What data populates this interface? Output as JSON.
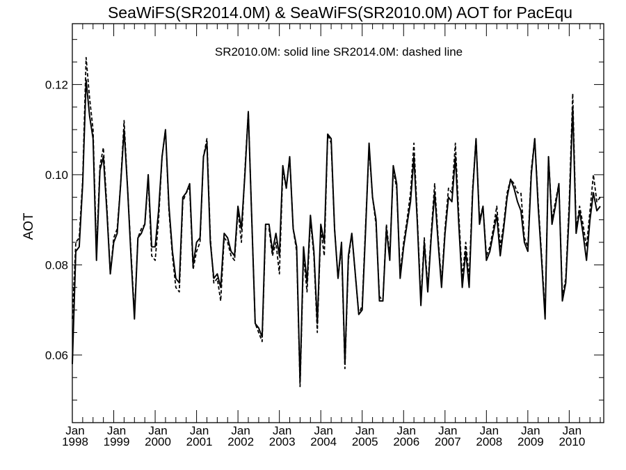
{
  "chart_data": {
    "type": "line",
    "title": "SeaWiFS(SR2014.0M) & SeaWiFS(SR2010.0M)  AOT for PacEqu",
    "annotation": "SR2010.0M: solid line   SR2014.0M: dashed line",
    "ylabel": "AOT",
    "xlabel": "",
    "xlim": [
      "1998-01",
      "2010-11"
    ],
    "ylim": [
      0.045,
      0.1335
    ],
    "grid": false,
    "legend": "none",
    "y_ticks": [
      {
        "value": 0.06,
        "label": "0.06"
      },
      {
        "value": 0.08,
        "label": "0.08"
      },
      {
        "value": 0.1,
        "label": "0.10"
      },
      {
        "value": 0.12,
        "label": "0.12"
      }
    ],
    "x_ticks": [
      {
        "month": "1998-01",
        "label1": "Jan",
        "label2": "1998"
      },
      {
        "month": "1999-01",
        "label1": "Jan",
        "label2": "1999"
      },
      {
        "month": "2000-01",
        "label1": "Jan",
        "label2": "2000"
      },
      {
        "month": "2001-01",
        "label1": "Jan",
        "label2": "2001"
      },
      {
        "month": "2002-01",
        "label1": "Jan",
        "label2": "2002"
      },
      {
        "month": "2003-01",
        "label1": "Jan",
        "label2": "2003"
      },
      {
        "month": "2004-01",
        "label1": "Jan",
        "label2": "2004"
      },
      {
        "month": "2005-01",
        "label1": "Jan",
        "label2": "2005"
      },
      {
        "month": "2006-01",
        "label1": "Jan",
        "label2": "2006"
      },
      {
        "month": "2007-01",
        "label1": "Jan",
        "label2": "2007"
      },
      {
        "month": "2008-01",
        "label1": "Jan",
        "label2": "2008"
      },
      {
        "month": "2009-01",
        "label1": "Jan",
        "label2": "2009"
      },
      {
        "month": "2010-01",
        "label1": "Jan",
        "label2": "2010"
      }
    ],
    "series": [
      {
        "style": "solid",
        "start": "1998-01",
        "values": [
          0.058,
          0.083,
          0.084,
          0.098,
          0.121,
          0.113,
          0.108,
          0.081,
          0.101,
          0.104,
          0.092,
          0.078,
          0.085,
          0.087,
          0.098,
          0.11,
          0.097,
          0.082,
          0.068,
          0.086,
          0.087,
          0.089,
          0.1,
          0.084,
          0.084,
          0.092,
          0.104,
          0.11,
          0.093,
          0.083,
          0.077,
          0.076,
          0.095,
          0.096,
          0.098,
          0.08,
          0.085,
          0.086,
          0.104,
          0.107,
          0.085,
          0.077,
          0.078,
          0.075,
          0.087,
          0.086,
          0.083,
          0.082,
          0.093,
          0.088,
          0.1,
          0.114,
          0.09,
          0.067,
          0.066,
          0.064,
          0.089,
          0.089,
          0.083,
          0.087,
          0.082,
          0.102,
          0.097,
          0.104,
          0.088,
          0.084,
          0.054,
          0.084,
          0.076,
          0.091,
          0.083,
          0.067,
          0.089,
          0.085,
          0.109,
          0.108,
          0.088,
          0.077,
          0.085,
          0.058,
          0.082,
          0.087,
          0.078,
          0.069,
          0.07,
          0.088,
          0.107,
          0.095,
          0.09,
          0.072,
          0.072,
          0.088,
          0.081,
          0.102,
          0.098,
          0.077,
          0.084,
          0.089,
          0.094,
          0.104,
          0.089,
          0.071,
          0.085,
          0.074,
          0.086,
          0.096,
          0.085,
          0.075,
          0.087,
          0.095,
          0.094,
          0.104,
          0.089,
          0.075,
          0.083,
          0.075,
          0.096,
          0.108,
          0.089,
          0.093,
          0.081,
          0.083,
          0.087,
          0.091,
          0.082,
          0.088,
          0.095,
          0.099,
          0.097,
          0.094,
          0.092,
          0.085,
          0.083,
          0.1,
          0.108,
          0.093,
          0.081,
          0.068,
          0.104,
          0.089,
          0.093,
          0.098,
          0.072,
          0.076,
          0.092,
          0.115,
          0.087,
          0.092,
          0.087,
          0.081,
          0.09,
          0.096,
          0.092,
          0.093
        ]
      },
      {
        "style": "dashed",
        "start": "1998-01",
        "values": [
          0.068,
          0.085,
          0.086,
          0.099,
          0.126,
          0.117,
          0.11,
          0.083,
          0.102,
          0.106,
          0.093,
          0.078,
          0.086,
          0.088,
          0.098,
          0.112,
          0.097,
          0.083,
          0.069,
          0.086,
          0.088,
          0.089,
          0.099,
          0.082,
          0.081,
          0.09,
          0.104,
          0.11,
          0.092,
          0.082,
          0.075,
          0.074,
          0.094,
          0.096,
          0.097,
          0.079,
          0.083,
          0.085,
          0.104,
          0.108,
          0.086,
          0.076,
          0.077,
          0.072,
          0.086,
          0.085,
          0.082,
          0.081,
          0.092,
          0.085,
          0.101,
          0.114,
          0.09,
          0.067,
          0.065,
          0.063,
          0.088,
          0.088,
          0.082,
          0.085,
          0.078,
          0.101,
          0.097,
          0.104,
          0.088,
          0.083,
          0.053,
          0.082,
          0.074,
          0.09,
          0.082,
          0.065,
          0.088,
          0.082,
          0.109,
          0.107,
          0.088,
          0.077,
          0.084,
          0.057,
          0.081,
          0.087,
          0.078,
          0.069,
          0.071,
          0.089,
          0.106,
          0.095,
          0.089,
          0.073,
          0.072,
          0.089,
          0.082,
          0.101,
          0.097,
          0.078,
          0.085,
          0.09,
          0.096,
          0.107,
          0.09,
          0.072,
          0.086,
          0.075,
          0.087,
          0.098,
          0.086,
          0.076,
          0.088,
          0.097,
          0.096,
          0.107,
          0.091,
          0.077,
          0.085,
          0.077,
          0.097,
          0.108,
          0.09,
          0.093,
          0.082,
          0.084,
          0.088,
          0.093,
          0.084,
          0.089,
          0.096,
          0.099,
          0.098,
          0.096,
          0.096,
          0.086,
          0.084,
          0.101,
          0.108,
          0.094,
          0.082,
          0.069,
          0.104,
          0.09,
          0.094,
          0.098,
          0.073,
          0.077,
          0.094,
          0.118,
          0.088,
          0.093,
          0.089,
          0.084,
          0.092,
          0.1,
          0.094,
          0.095
        ]
      }
    ]
  }
}
